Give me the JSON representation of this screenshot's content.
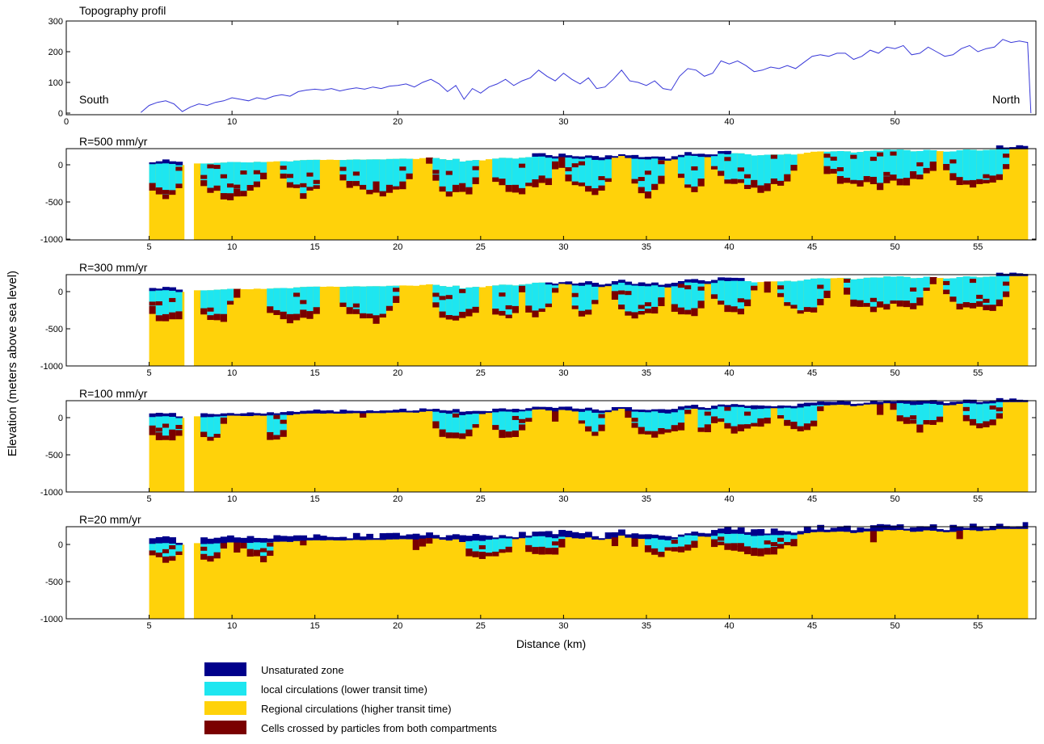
{
  "figure": {
    "ylabel": "Elevation (meters above sea level)",
    "xlabel": "Distance (km)"
  },
  "colors": {
    "unsaturated": "#00008b",
    "local": "#1ee6f0",
    "regional": "#ffd20a",
    "mixed": "#7a0000",
    "profile_line": "#3838d8"
  },
  "chart_data": [
    {
      "type": "line",
      "title": "Topography profil",
      "annotations": [
        "South",
        "North"
      ],
      "xlim": [
        0,
        58.5
      ],
      "ylim": [
        0,
        300
      ],
      "xticks": [
        0,
        10,
        20,
        30,
        40,
        50
      ],
      "yticks": [
        0,
        100,
        200,
        300
      ],
      "series": [
        {
          "x": [
            4.5,
            5,
            5.5,
            6,
            6.5,
            7,
            7.5,
            8,
            8.5,
            9,
            9.5,
            10,
            10.5,
            11,
            11.5,
            12,
            12.5,
            13,
            13.5,
            14,
            14.5,
            15,
            15.5,
            16,
            16.5,
            17,
            17.5,
            18,
            18.5,
            19,
            19.5,
            20,
            20.5,
            21,
            21.5,
            22,
            22.5,
            23,
            23.5,
            24,
            24.5,
            25,
            25.5,
            26,
            26.5,
            27,
            27.5,
            28,
            28.5,
            29,
            29.5,
            30,
            30.5,
            31,
            31.5,
            32,
            32.5,
            33,
            33.5,
            34,
            34.5,
            35,
            35.5,
            36,
            36.5,
            37,
            37.5,
            38,
            38.5,
            39,
            39.5,
            40,
            40.5,
            41,
            41.5,
            42,
            42.5,
            43,
            43.5,
            44,
            44.5,
            45,
            45.5,
            46,
            46.5,
            47,
            47.5,
            48,
            48.5,
            49,
            49.5,
            50,
            50.5,
            51,
            51.5,
            52,
            52.5,
            53,
            53.5,
            54,
            54.5,
            55,
            55.5,
            56,
            56.5,
            57,
            57.5,
            58,
            58.2
          ],
          "y": [
            2,
            25,
            35,
            40,
            30,
            5,
            20,
            30,
            25,
            35,
            40,
            50,
            45,
            40,
            50,
            45,
            55,
            60,
            55,
            70,
            75,
            78,
            75,
            80,
            72,
            78,
            82,
            78,
            85,
            80,
            88,
            90,
            95,
            85,
            100,
            110,
            95,
            70,
            90,
            45,
            80,
            65,
            85,
            95,
            110,
            90,
            105,
            115,
            140,
            120,
            105,
            130,
            110,
            95,
            115,
            80,
            85,
            110,
            140,
            105,
            100,
            90,
            105,
            80,
            75,
            120,
            145,
            140,
            120,
            130,
            170,
            160,
            170,
            155,
            135,
            140,
            150,
            145,
            155,
            145,
            165,
            185,
            190,
            185,
            195,
            195,
            175,
            185,
            205,
            195,
            215,
            210,
            220,
            190,
            195,
            215,
            200,
            185,
            190,
            210,
            220,
            200,
            210,
            215,
            240,
            230,
            235,
            230,
            0
          ]
        }
      ]
    },
    {
      "type": "heatmap",
      "title": "R=500 mm/yr",
      "xlim": [
        0,
        58.5
      ],
      "ylim": [
        -1000,
        230
      ],
      "xticks": [
        5,
        10,
        15,
        20,
        25,
        30,
        35,
        40,
        45,
        50,
        55
      ],
      "yticks": [
        0,
        -500,
        -1000
      ],
      "series": [
        {
          "name": "Unsaturated zone",
          "extent_km": [
            [
              5,
              7
            ],
            [
              28,
              40
            ],
            [
              56,
              58
            ]
          ]
        },
        {
          "name": "local circulations (lower transit time)",
          "extent_km": [
            [
              5,
              7
            ],
            [
              8,
              12
            ],
            [
              13,
              15.5
            ],
            [
              16.5,
              21
            ],
            [
              22,
              25
            ],
            [
              25.5,
              29.5
            ],
            [
              30,
              33
            ],
            [
              34,
              36
            ],
            [
              37,
              38.5
            ],
            [
              39,
              44
            ],
            [
              45.5,
              52.5
            ],
            [
              53,
              57
            ]
          ]
        },
        {
          "name": "Regional circulations (higher transit time)",
          "extent_km": [
            [
              5,
              7.1
            ],
            [
              7.7,
              58
            ]
          ]
        },
        {
          "name": "Cells crossed by particles from both compartments",
          "extent_km": [
            [
              5,
              7.1
            ],
            [
              7.7,
              58
            ]
          ]
        }
      ]
    },
    {
      "type": "heatmap",
      "title": "R=300 mm/yr",
      "xlim": [
        0,
        58.5
      ],
      "ylim": [
        -1000,
        230
      ],
      "xticks": [
        5,
        10,
        15,
        20,
        25,
        30,
        35,
        40,
        45,
        50,
        55
      ],
      "yticks": [
        0,
        -500,
        -1000
      ],
      "series": [
        {
          "name": "Unsaturated zone",
          "extent_km": [
            [
              5,
              7
            ],
            [
              29,
              41
            ],
            [
              56,
              58
            ]
          ]
        },
        {
          "name": "local circulations (lower transit time)",
          "extent_km": [
            [
              5,
              7
            ],
            [
              8,
              10
            ],
            [
              12,
              15.5
            ],
            [
              16.5,
              20
            ],
            [
              22,
              25
            ],
            [
              25.5,
              27.5
            ],
            [
              27.5,
              29.5
            ],
            [
              30.5,
              32
            ],
            [
              33,
              36
            ],
            [
              36.5,
              38.5
            ],
            [
              39,
              41.5
            ],
            [
              43,
              46
            ],
            [
              47,
              52
            ],
            [
              53,
              57
            ]
          ]
        },
        {
          "name": "Regional circulations (higher transit time)",
          "extent_km": [
            [
              5,
              7.1
            ],
            [
              7.7,
              58
            ]
          ]
        },
        {
          "name": "Cells crossed by particles from both compartments",
          "extent_km": [
            [
              5,
              7.1
            ],
            [
              7.7,
              58
            ]
          ]
        }
      ]
    },
    {
      "type": "heatmap",
      "title": "R=100 mm/yr",
      "xlim": [
        0,
        58.5
      ],
      "ylim": [
        -1000,
        230
      ],
      "xticks": [
        5,
        10,
        15,
        20,
        25,
        30,
        35,
        40,
        45,
        50,
        55
      ],
      "yticks": [
        0,
        -500,
        -1000
      ],
      "series": [
        {
          "name": "Unsaturated zone",
          "extent_km": [
            [
              5,
              7
            ],
            [
              8,
              58
            ]
          ]
        },
        {
          "name": "local circulations (lower transit time)",
          "extent_km": [
            [
              5,
              7
            ],
            [
              8,
              9.5
            ],
            [
              12,
              13.5
            ],
            [
              22,
              25
            ],
            [
              25.5,
              28
            ],
            [
              31,
              32.5
            ],
            [
              34,
              37.5
            ],
            [
              38,
              39
            ],
            [
              39,
              42.5
            ],
            [
              43,
              45.5
            ],
            [
              50,
              53
            ],
            [
              54,
              56.5
            ]
          ]
        },
        {
          "name": "Regional circulations (higher transit time)",
          "extent_km": [
            [
              5,
              7.1
            ],
            [
              7.7,
              58
            ]
          ]
        },
        {
          "name": "Cells crossed by particles from both compartments",
          "extent_km": [
            [
              5,
              7.1
            ],
            [
              7.7,
              58
            ]
          ]
        }
      ]
    },
    {
      "type": "heatmap",
      "title": "R=20 mm/yr",
      "xlim": [
        0,
        58.5
      ],
      "ylim": [
        -1000,
        230
      ],
      "xticks": [
        5,
        10,
        15,
        20,
        25,
        30,
        35,
        40,
        45,
        50,
        55
      ],
      "yticks": [
        0,
        -500,
        -1000
      ],
      "series": [
        {
          "name": "Unsaturated zone",
          "extent_km": [
            [
              5,
              7
            ],
            [
              8,
              58
            ]
          ]
        },
        {
          "name": "local circulations (lower transit time)",
          "extent_km": [
            [
              5,
              7
            ],
            [
              8,
              9.5
            ],
            [
              11,
              12.5
            ],
            [
              24,
              27
            ],
            [
              27.5,
              30
            ],
            [
              35,
              36.5
            ],
            [
              36.5,
              38
            ],
            [
              39,
              44
            ]
          ]
        },
        {
          "name": "Regional circulations (higher transit time)",
          "extent_km": [
            [
              5,
              7.1
            ],
            [
              7.7,
              58
            ]
          ]
        },
        {
          "name": "Cells crossed by particles from both compartments",
          "extent_km": [
            [
              5,
              7.1
            ],
            [
              7.7,
              58
            ]
          ]
        }
      ]
    }
  ],
  "legend": [
    {
      "key": "unsaturated",
      "label": "Unsaturated zone"
    },
    {
      "key": "local",
      "label": "local circulations (lower transit time)"
    },
    {
      "key": "regional",
      "label": "Regional circulations (higher transit time)"
    },
    {
      "key": "mixed",
      "label": "Cells crossed by particles from both compartments"
    }
  ]
}
